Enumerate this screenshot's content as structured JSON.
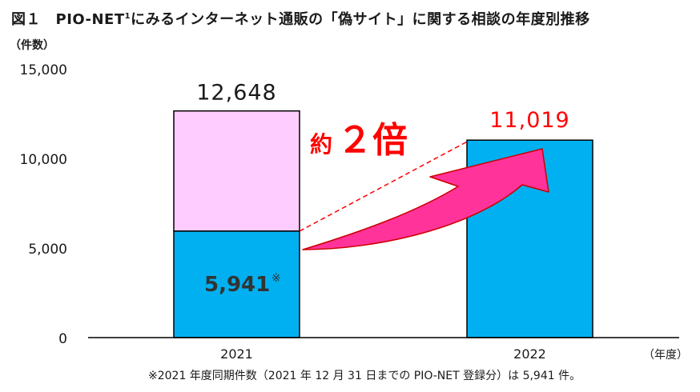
{
  "title": {
    "figure_no": "図１",
    "text_before_sup": "PIO-NET",
    "superscript": "1",
    "text_after_sup": "にみるインターネット通販の「偽サイト」に関する相談の年度別推移"
  },
  "y_unit": "（件数）",
  "x_unit": "（年度）",
  "footnote": "※2021 年度同期件数（2021 年 12 月 31 日までの PIO-NET 登録分）は 5,941 件。",
  "annotation": {
    "prefix": "約",
    "main": "２倍",
    "color": "#ff0000"
  },
  "colors": {
    "bar": "#00b0f0",
    "bar_upper": "#ffccff",
    "arrow": "#ff3399",
    "dashed_line": "#ff0000",
    "label_red": "#ff0000"
  },
  "chart_data": {
    "type": "bar",
    "categories": [
      "2021",
      "2022"
    ],
    "ylim": [
      0,
      15000
    ],
    "yticks": [
      0,
      5000,
      10000,
      15000
    ],
    "ytick_labels": [
      "0",
      "5,000",
      "10,000",
      "15,000"
    ],
    "bars": [
      {
        "category": "2021",
        "total": 12648,
        "total_label": "12,648",
        "segment_value": 5941,
        "segment_label": "5,941",
        "segment_mark": "※"
      },
      {
        "category": "2022",
        "total": 11019,
        "total_label": "11,019"
      }
    ]
  }
}
